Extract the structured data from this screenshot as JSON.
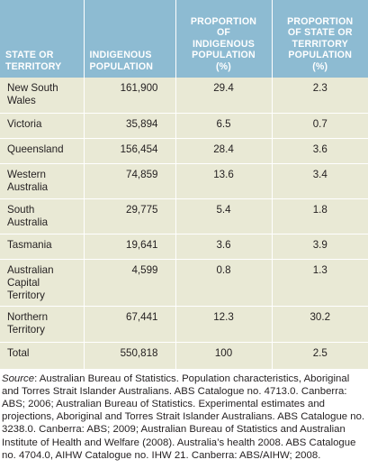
{
  "table": {
    "headers": [
      "STATE OR\nTERRITORY",
      "INDIGENOUS\nPOPULATION",
      "PROPORTION\nOF\nINDIGENOUS\nPOPULATION\n(%)",
      "PROPORTION\nOF STATE OR\nTERRITORY\nPOPULATION\n(%)"
    ],
    "rows": [
      {
        "state": "New South\nWales",
        "population": "161,900",
        "pct_indigenous": "29.4",
        "pct_state": "2.3"
      },
      {
        "state": "Victoria",
        "population": "35,894",
        "pct_indigenous": "6.5",
        "pct_state": "0.7"
      },
      {
        "state": "Queensland",
        "population": "156,454",
        "pct_indigenous": "28.4",
        "pct_state": "3.6"
      },
      {
        "state": "Western\nAustralia",
        "population": "74,859",
        "pct_indigenous": "13.6",
        "pct_state": "3.4"
      },
      {
        "state": "South\nAustralia",
        "population": "29,775",
        "pct_indigenous": "5.4",
        "pct_state": "1.8"
      },
      {
        "state": "Tasmania",
        "population": "19,641",
        "pct_indigenous": "3.6",
        "pct_state": "3.9"
      },
      {
        "state": "Australian\nCapital\nTerritory",
        "population": "4,599",
        "pct_indigenous": "0.8",
        "pct_state": "1.3"
      },
      {
        "state": "Northern\nTerritory",
        "population": "67,441",
        "pct_indigenous": "12.3",
        "pct_state": "30.2"
      },
      {
        "state": "Total",
        "population": "550,818",
        "pct_indigenous": "100",
        "pct_state": "2.5"
      }
    ]
  },
  "source": {
    "label": "Source",
    "text": ": Australian Bureau of Statistics. Population characteristics, Aboriginal and Torres Strait Islander Australians. ABS Catalogue no. 4713.0. Canberra: ABS; 2006; Australian Bureau of Statistics. Experimental estimates and projections, Aboriginal and Torres Strait Islander Australians. ABS Catalogue no. 3238.0. Canberra: ABS; 2009; Australian Bureau of Statistics and Australian Institute of Health and Welfare (2008). Australia’s health 2008. ABS Catalogue no. 4704.0, AIHW Catalogue no. IHW 21. Canberra: ABS/AIHW; 2008."
  }
}
